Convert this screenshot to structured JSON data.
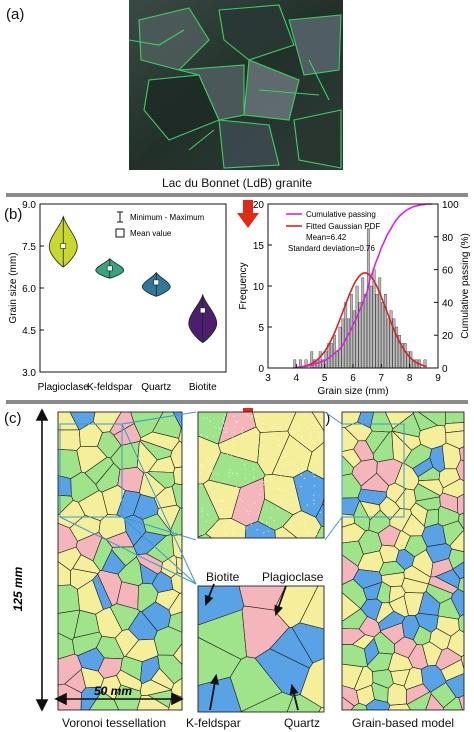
{
  "panels": {
    "a": {
      "label": "(a)",
      "caption": "Lac du Bonnet (LdB) granite"
    },
    "b": {
      "label": "(b)"
    },
    "c": {
      "label": "(c)",
      "caption": "Voronoi tessellation",
      "height_label": "125 mm",
      "width_label": "50 mm"
    },
    "d": {
      "label": "(d)",
      "caption": "Grain-based model"
    }
  },
  "mineral_callouts": {
    "biotite": "Biotite",
    "plagioclase": "Plagioclase",
    "kfeldspar": "K-feldspar",
    "quartz": "Quartz"
  },
  "mineral_colors": {
    "plagioclase": "#f5ee9a",
    "kfeldspar": "#9fe38a",
    "quartz": "#5aa2e6",
    "biotite": "#f4b6bb"
  },
  "chart_data": [
    {
      "type": "violin",
      "ylabel": "Grain size (mm)",
      "ylim": [
        3.0,
        9.0
      ],
      "yticks": [
        "3.0",
        "4.5",
        "6.0",
        "7.5",
        "9.0"
      ],
      "categories": [
        "Plagioclase",
        "K-feldspar",
        "Quartz",
        "Biotite"
      ],
      "colors": [
        "#c8d82e",
        "#37a67f",
        "#2f7896",
        "#4b1f6e"
      ],
      "min": [
        6.75,
        6.35,
        5.7,
        4.05
      ],
      "max": [
        8.55,
        7.05,
        6.55,
        5.75
      ],
      "mean": [
        7.5,
        6.7,
        6.2,
        5.2
      ],
      "legend": {
        "range": "Minimum - Maximum",
        "mean": "Mean value"
      }
    },
    {
      "type": "histogram",
      "xlabel": "Grain size (mm)",
      "ylabel": "Frequency",
      "y2label": "Cumulative passing (%)",
      "xlim": [
        3,
        9
      ],
      "ylim": [
        0,
        20
      ],
      "y2lim": [
        0,
        100
      ],
      "xticks": [
        "3",
        "4",
        "5",
        "6",
        "7",
        "8",
        "9"
      ],
      "yticks": [
        "0",
        "5",
        "10",
        "15",
        "20"
      ],
      "y2ticks": [
        "0",
        "20",
        "40",
        "60",
        "80",
        "100"
      ],
      "bin_width": 0.1,
      "bin_starts": [
        3.9,
        4.0,
        4.1,
        4.2,
        4.3,
        4.4,
        4.5,
        4.6,
        4.7,
        4.8,
        4.9,
        5.0,
        5.1,
        5.2,
        5.3,
        5.4,
        5.5,
        5.6,
        5.7,
        5.8,
        5.9,
        6.0,
        6.1,
        6.2,
        6.3,
        6.4,
        6.5,
        6.6,
        6.7,
        6.8,
        6.9,
        7.0,
        7.1,
        7.2,
        7.3,
        7.4,
        7.5,
        7.6,
        7.7,
        7.8,
        7.9,
        8.0,
        8.1,
        8.2,
        8.3,
        8.4,
        8.5
      ],
      "frequencies": [
        1,
        0,
        1,
        0,
        1,
        0,
        2,
        1,
        1,
        2,
        1,
        2,
        3,
        3,
        4,
        2,
        5,
        6,
        8,
        6,
        9,
        7,
        10,
        8,
        11,
        9,
        17,
        10,
        12,
        9,
        11,
        8,
        9,
        6,
        7,
        6,
        5,
        4,
        3,
        3,
        2,
        2,
        1,
        1,
        1,
        0,
        1
      ],
      "series": [
        {
          "name": "Cumulative passing",
          "color": "#e020e0"
        },
        {
          "name": "Fitted Gaussian PDF",
          "color": "#e02020",
          "mean": 6.42,
          "std": 0.76
        }
      ],
      "annotations": [
        "Mean=6.42",
        "Standard deviation=0.76"
      ]
    }
  ]
}
